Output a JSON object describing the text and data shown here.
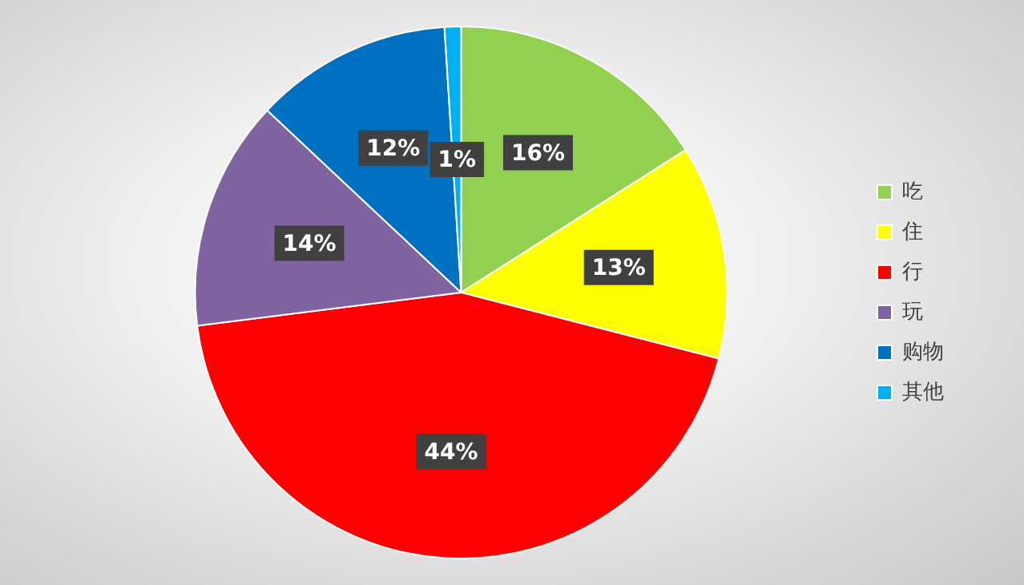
{
  "chart_data": {
    "type": "pie",
    "categories": [
      "吃",
      "住",
      "行",
      "玩",
      "购物",
      "其他"
    ],
    "values": [
      16,
      13,
      44,
      14,
      12,
      1
    ],
    "colors": [
      "#92d050",
      "#ffff00",
      "#ff0000",
      "#8064a2",
      "#0070c0",
      "#00b0f0"
    ],
    "value_labels": [
      "16%",
      "13%",
      "44%",
      "14%",
      "12%",
      "1%"
    ],
    "legend": "right"
  }
}
